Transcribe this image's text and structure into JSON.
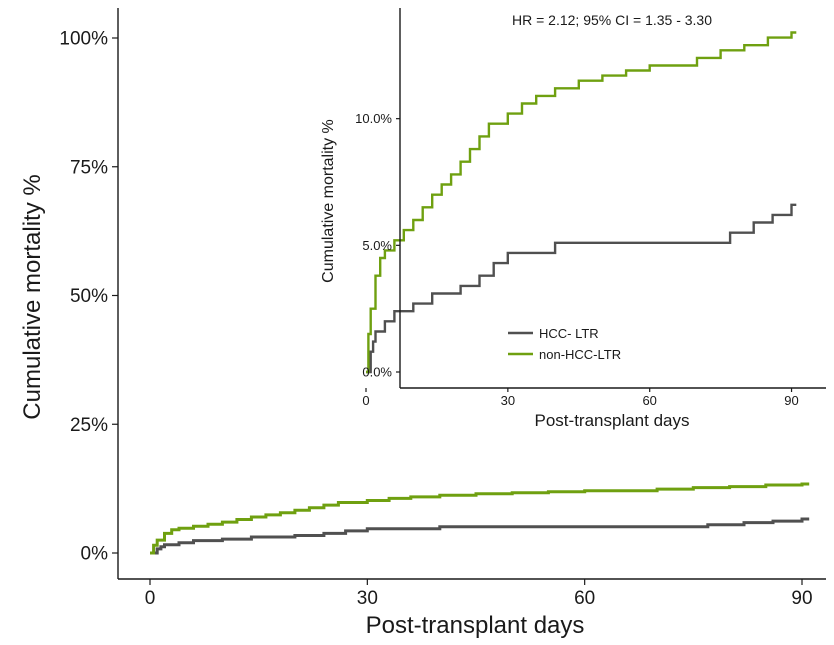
{
  "colors": {
    "hcc": "#505050",
    "non_hcc": "#6fa010",
    "axis": "#1a1a1a",
    "background": "#ffffff"
  },
  "chart_data": [
    {
      "id": "main",
      "type": "line",
      "step": true,
      "xlabel": "Post-transplant days",
      "ylabel": "Cumulative mortality %",
      "xlim": [
        0,
        90
      ],
      "ylim": [
        0,
        100
      ],
      "xticks": [
        0,
        30,
        60,
        90
      ],
      "xtick_labels": [
        "0",
        "30",
        "60",
        "90"
      ],
      "yticks": [
        0,
        25,
        50,
        75,
        100
      ],
      "ytick_labels": [
        "0%",
        "25%",
        "50%",
        "75%",
        "100%"
      ],
      "grid": false,
      "legend": "none",
      "series": [
        {
          "key": "hcc",
          "x": [
            0,
            1,
            1.5,
            2,
            4,
            6,
            10,
            14,
            20,
            24,
            27,
            30,
            40,
            77,
            82,
            86,
            90,
            91
          ],
          "y": [
            0,
            0.8,
            1.2,
            1.6,
            2.0,
            2.4,
            2.7,
            3.1,
            3.4,
            3.8,
            4.3,
            4.7,
            5.1,
            5.5,
            5.9,
            6.2,
            6.6,
            6.6
          ]
        },
        {
          "key": "non_hcc",
          "x": [
            0,
            0.5,
            1,
            2,
            3,
            4,
            6,
            8,
            10,
            12,
            14,
            16,
            18,
            20,
            22,
            24,
            26,
            30,
            33,
            36,
            40,
            45,
            50,
            55,
            60,
            70,
            75,
            80,
            85,
            90,
            91
          ],
          "y": [
            0,
            1.5,
            2.5,
            3.8,
            4.5,
            4.8,
            5.2,
            5.6,
            6.0,
            6.5,
            7.0,
            7.4,
            7.8,
            8.3,
            8.8,
            9.3,
            9.8,
            10.2,
            10.6,
            10.9,
            11.2,
            11.5,
            11.7,
            11.9,
            12.1,
            12.4,
            12.7,
            12.9,
            13.2,
            13.4,
            13.4
          ]
        }
      ]
    },
    {
      "id": "inset",
      "type": "line",
      "step": true,
      "annotation": "HR = 2.12; 95% CI = 1.35 - 3.30",
      "xlabel": "Post-transplant days",
      "ylabel": "Cumulative mortality %",
      "xlim": [
        0,
        92
      ],
      "ylim": [
        0,
        13.5
      ],
      "xticks": [
        0,
        30,
        60,
        90
      ],
      "xtick_labels": [
        "0",
        "30",
        "60",
        "90"
      ],
      "yticks": [
        0,
        5,
        10
      ],
      "ytick_labels": [
        "0.0%",
        "5.0%",
        "10.0%"
      ],
      "grid": false,
      "legend": "bottom-left",
      "series": [
        {
          "key": "hcc",
          "name": "HCC- LTR",
          "x": [
            0,
            1,
            1.5,
            2,
            4,
            6,
            10,
            14,
            20,
            24,
            27,
            30,
            40,
            77,
            82,
            86,
            90,
            91
          ],
          "y": [
            0,
            0.8,
            1.2,
            1.6,
            2.0,
            2.4,
            2.7,
            3.1,
            3.4,
            3.8,
            4.3,
            4.7,
            5.1,
            5.5,
            5.9,
            6.2,
            6.6,
            6.6
          ]
        },
        {
          "key": "non_hcc",
          "name": "non-HCC-LTR",
          "x": [
            0,
            0.5,
            1,
            2,
            3,
            4,
            6,
            8,
            10,
            12,
            14,
            16,
            18,
            20,
            22,
            24,
            26,
            30,
            33,
            36,
            40,
            45,
            50,
            55,
            60,
            70,
            75,
            80,
            85,
            90,
            91
          ],
          "y": [
            0,
            1.5,
            2.5,
            3.8,
            4.5,
            4.8,
            5.2,
            5.6,
            6.0,
            6.5,
            7.0,
            7.4,
            7.8,
            8.3,
            8.8,
            9.3,
            9.8,
            10.2,
            10.6,
            10.9,
            11.2,
            11.5,
            11.7,
            11.9,
            12.1,
            12.4,
            12.7,
            12.9,
            13.2,
            13.4,
            13.4
          ]
        }
      ]
    }
  ]
}
